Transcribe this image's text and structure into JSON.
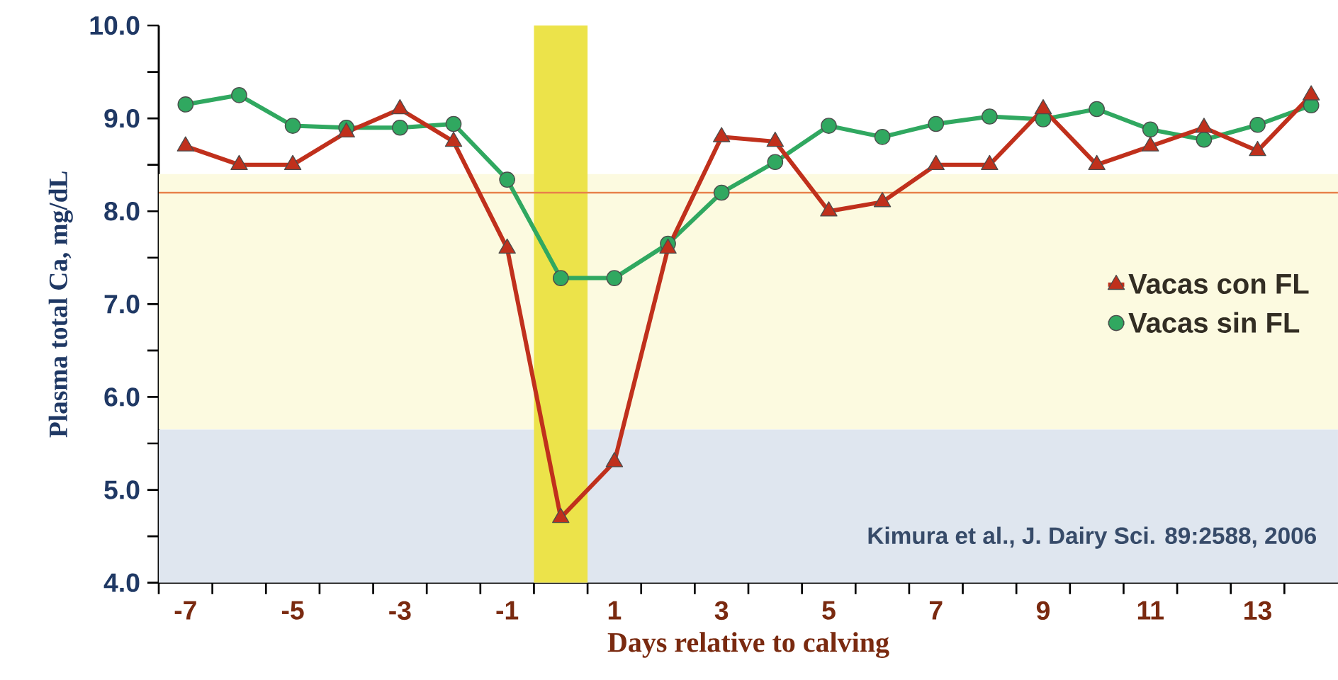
{
  "chart_data": {
    "type": "line",
    "xlabel": "Days relative to calving",
    "ylabel": "Plasma total Ca, mg/dL",
    "x": [
      -7,
      -6,
      -5,
      -4,
      -3,
      -2,
      -1,
      0,
      1,
      2,
      3,
      4,
      5,
      6,
      7,
      8,
      9,
      10,
      11,
      12,
      13,
      14
    ],
    "series": [
      {
        "name": "Vacas con FL",
        "color": "#c0301c",
        "marker": "triangle",
        "values": [
          8.7,
          8.5,
          8.5,
          8.85,
          9.1,
          8.75,
          7.6,
          4.7,
          5.3,
          7.6,
          8.8,
          8.75,
          8.0,
          8.1,
          8.5,
          8.5,
          9.1,
          8.5,
          8.7,
          8.9,
          8.65,
          9.25
        ]
      },
      {
        "name": "Vacas sin FL",
        "color": "#30a860",
        "marker": "circle",
        "values": [
          9.15,
          9.25,
          8.92,
          8.9,
          8.9,
          8.94,
          8.34,
          7.28,
          7.28,
          7.65,
          8.2,
          8.53,
          8.92,
          8.8,
          8.94,
          9.02,
          8.99,
          9.1,
          8.88,
          8.77,
          8.93,
          9.14
        ]
      }
    ],
    "xlim": [
      -7.5,
      14.5
    ],
    "ylim": [
      4,
      10
    ],
    "xticks": [
      {
        "value": -7.5,
        "label": null
      },
      {
        "value": -6.5,
        "label": null
      },
      {
        "value": -5.5,
        "label": null
      },
      {
        "value": -4.5,
        "label": null
      },
      {
        "value": -3.5,
        "label": null
      },
      {
        "value": -2.5,
        "label": null
      },
      {
        "value": -1.5,
        "label": null
      },
      {
        "value": -0.5,
        "label": null
      },
      {
        "value": 0.5,
        "label": null
      },
      {
        "value": 1.5,
        "label": null
      },
      {
        "value": 2.5,
        "label": null
      },
      {
        "value": 3.5,
        "label": null
      },
      {
        "value": 4.5,
        "label": null
      },
      {
        "value": 5.5,
        "label": null
      },
      {
        "value": 6.5,
        "label": null
      },
      {
        "value": 7.5,
        "label": null
      },
      {
        "value": 8.5,
        "label": null
      },
      {
        "value": 9.5,
        "label": null
      },
      {
        "value": 10.5,
        "label": null
      },
      {
        "value": 11.5,
        "label": null
      },
      {
        "value": 12.5,
        "label": null
      },
      {
        "value": 13.5,
        "label": null
      },
      {
        "value": -7,
        "label": "-7"
      },
      {
        "value": -5,
        "label": "-5"
      },
      {
        "value": -3,
        "label": "-3"
      },
      {
        "value": -1,
        "label": "-1"
      },
      {
        "value": 1,
        "label": "1"
      },
      {
        "value": 3,
        "label": "3"
      },
      {
        "value": 5,
        "label": "5"
      },
      {
        "value": 7,
        "label": "7"
      },
      {
        "value": 9,
        "label": "9"
      },
      {
        "value": 11,
        "label": "11"
      },
      {
        "value": 13,
        "label": "13"
      }
    ],
    "yticks": [
      {
        "value": 4,
        "label": "4.0"
      },
      {
        "value": 4.5,
        "label": null
      },
      {
        "value": 5,
        "label": "5.0"
      },
      {
        "value": 5.5,
        "label": null
      },
      {
        "value": 6,
        "label": "6.0"
      },
      {
        "value": 6.5,
        "label": null
      },
      {
        "value": 7,
        "label": "7.0"
      },
      {
        "value": 7.5,
        "label": null
      },
      {
        "value": 8,
        "label": "8.0"
      },
      {
        "value": 8.5,
        "label": null
      },
      {
        "value": 9,
        "label": "9.0"
      },
      {
        "value": 9.5,
        "label": null
      },
      {
        "value": 10,
        "label": "10.0"
      }
    ],
    "ref_lines": [
      {
        "axis": "y",
        "value": 8.2,
        "color": "#e8804a"
      }
    ],
    "bands": [
      {
        "axis": "y",
        "from": 5.65,
        "to": 8.4,
        "color": "#fcfae0"
      },
      {
        "axis": "y",
        "from": 4,
        "to": 5.65,
        "color": "#dfe6ef"
      },
      {
        "axis": "x",
        "from": -0.5,
        "to": 0.5,
        "color": "#ece34a"
      }
    ],
    "annotations": [
      "Kimura et al., J. Dairy Sci. 89:2588, 2006"
    ],
    "legend": "right",
    "line_style": "solid",
    "grid": false
  }
}
